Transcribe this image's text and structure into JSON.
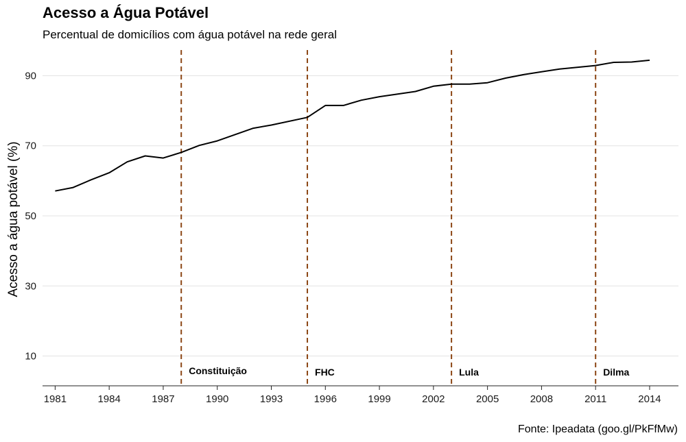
{
  "header": {
    "title": "Acesso a Água Potável",
    "subtitle": "Percentual de domicílios com água potável na rede geral"
  },
  "caption": "Fonte: Ipeadata (goo.gl/PkFfMw)",
  "chart_data": {
    "type": "line",
    "title": "Acesso a Água Potável",
    "subtitle": "Percentual de domicílios com água potável na rede geral",
    "xlabel": "",
    "ylabel": "Acesso a água potável (%)",
    "xlim": [
      1980.3,
      2015.6
    ],
    "ylim": [
      1.5,
      98.3
    ],
    "x_ticks": [
      1981,
      1984,
      1987,
      1990,
      1993,
      1996,
      1999,
      2002,
      2005,
      2008,
      2011,
      2014
    ],
    "y_ticks": [
      10,
      30,
      50,
      70,
      90
    ],
    "grid": "horizontal",
    "line_color": "#000000",
    "vline_color": "#8B4513",
    "series": [
      {
        "x": [
          1981,
          1982,
          1983,
          1984,
          1985,
          1986,
          1987,
          1988,
          1989,
          1990,
          1992,
          1993,
          1995,
          1996,
          1997,
          1998,
          1999,
          2001,
          2002,
          2003,
          2004,
          2005,
          2006,
          2007,
          2008,
          2009,
          2011,
          2012,
          2013,
          2014
        ],
        "y": [
          57.1,
          58.1,
          60.3,
          62.3,
          65.4,
          67.1,
          66.5,
          68.1,
          70.1,
          71.4,
          75.0,
          75.9,
          78.1,
          81.5,
          81.5,
          83.0,
          84.0,
          85.5,
          87.0,
          87.6,
          87.6,
          88.0,
          89.3,
          90.3,
          91.1,
          91.9,
          92.9,
          93.8,
          93.9,
          94.4
        ]
      }
    ],
    "annotations": [
      {
        "x": 1988,
        "label": "Constituição"
      },
      {
        "x": 1995,
        "label": "FHC"
      },
      {
        "x": 2003,
        "label": "Lula"
      },
      {
        "x": 2011,
        "label": "Dilma"
      }
    ]
  }
}
